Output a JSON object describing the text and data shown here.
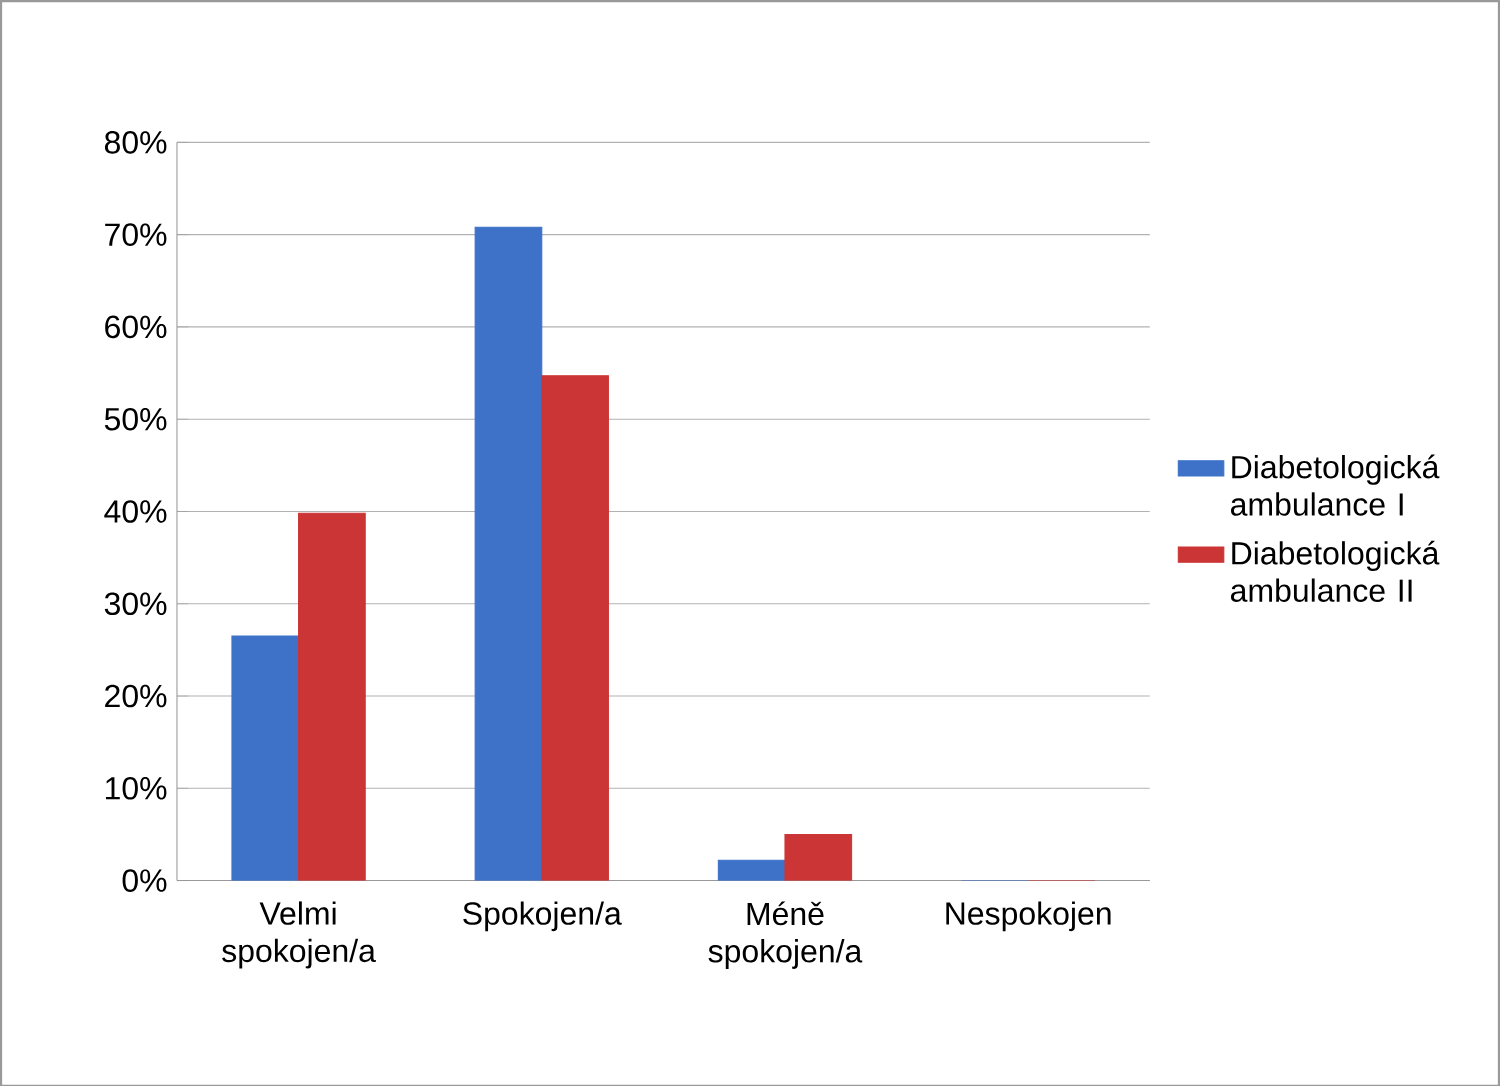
{
  "chart_data": {
    "type": "bar",
    "categories": [
      "Velmi spokojen/a",
      "Spokojen/a",
      "Méně spokojen/a",
      "Nespokojen"
    ],
    "series": [
      {
        "name": "Diabetologická ambulance I",
        "color": "#3d72c8",
        "values": [
          26.5,
          70.8,
          2.2,
          0
        ]
      },
      {
        "name": "Diabetologická ambulance II",
        "color": "#cc3535",
        "values": [
          39.8,
          54.7,
          5,
          0
        ]
      }
    ],
    "ylim": [
      0,
      80
    ],
    "yticks": [
      {
        "value": 0,
        "label": "0%"
      },
      {
        "value": 10,
        "label": "10%"
      },
      {
        "value": 20,
        "label": "20%"
      },
      {
        "value": 30,
        "label": "30%"
      },
      {
        "value": 40,
        "label": "40%"
      },
      {
        "value": 50,
        "label": "50%"
      },
      {
        "value": 60,
        "label": "60%"
      },
      {
        "value": 70,
        "label": "70%"
      },
      {
        "value": 80,
        "label": "80%"
      }
    ],
    "grid": "y",
    "legend": "right"
  }
}
